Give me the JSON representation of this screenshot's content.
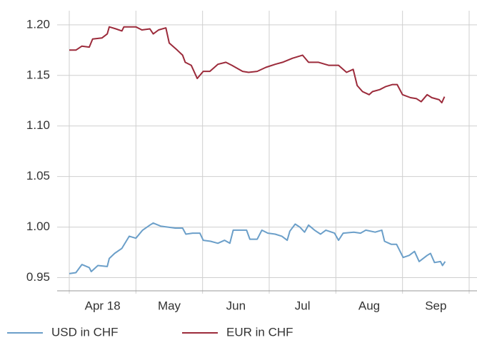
{
  "chart_data": {
    "type": "line",
    "xtick_labels": [
      "Apr 18",
      "May",
      "Jun",
      "Jul",
      "Aug",
      "Sep"
    ],
    "xlim": [
      0,
      6
    ],
    "xticks": [
      0,
      1,
      2,
      3,
      4,
      5,
      6
    ],
    "ylim": [
      0.937,
      1.214
    ],
    "yticks": [
      {
        "value": 0.95,
        "label": "0.95"
      },
      {
        "value": 1.0,
        "label": "1.00"
      },
      {
        "value": 1.05,
        "label": "1.05"
      },
      {
        "value": 1.1,
        "label": "1.10"
      },
      {
        "value": 1.15,
        "label": "1.15"
      },
      {
        "value": 1.2,
        "label": "1.20"
      }
    ],
    "grid": true,
    "legend": "bottom",
    "series": [
      {
        "name": "USD in CHF",
        "color": "#6b9fc9",
        "x": [
          0,
          0.1,
          0.19,
          0.3,
          0.33,
          0.43,
          0.57,
          0.6,
          0.68,
          0.79,
          0.9,
          1.0,
          1.1,
          1.21,
          1.26,
          1.37,
          1.48,
          1.59,
          1.7,
          1.75,
          1.85,
          1.96,
          2.01,
          2.12,
          2.23,
          2.33,
          2.41,
          2.46,
          2.66,
          2.71,
          2.82,
          2.89,
          2.98,
          3.09,
          3.19,
          3.27,
          3.31,
          3.39,
          3.46,
          3.53,
          3.59,
          3.68,
          3.77,
          3.85,
          3.98,
          4.04,
          4.11,
          4.27,
          4.37,
          4.45,
          4.59,
          4.69,
          4.73,
          4.83,
          4.91,
          5.01,
          5.1,
          5.18,
          5.25,
          5.37,
          5.42,
          5.48,
          5.57,
          5.6,
          5.64
        ],
        "values": [
          0.954,
          0.955,
          0.963,
          0.96,
          0.956,
          0.962,
          0.961,
          0.969,
          0.974,
          0.979,
          0.991,
          0.989,
          0.997,
          1.002,
          1.004,
          1.001,
          1.0,
          0.999,
          0.999,
          0.993,
          0.994,
          0.994,
          0.987,
          0.986,
          0.984,
          0.987,
          0.984,
          0.997,
          0.997,
          0.988,
          0.988,
          0.997,
          0.994,
          0.993,
          0.991,
          0.987,
          0.996,
          1.003,
          1.0,
          0.995,
          1.002,
          0.997,
          0.993,
          0.997,
          0.994,
          0.987,
          0.994,
          0.995,
          0.994,
          0.997,
          0.995,
          0.997,
          0.986,
          0.983,
          0.983,
          0.97,
          0.972,
          0.976,
          0.966,
          0.972,
          0.974,
          0.965,
          0.966,
          0.962,
          0.966
        ]
      },
      {
        "name": "EUR in CHF",
        "color": "#9c2b3b",
        "x": [
          0,
          0.1,
          0.19,
          0.3,
          0.35,
          0.49,
          0.57,
          0.6,
          0.7,
          0.79,
          0.82,
          1.0,
          1.09,
          1.21,
          1.26,
          1.34,
          1.45,
          1.5,
          1.62,
          1.7,
          1.74,
          1.83,
          1.92,
          2.01,
          2.11,
          2.23,
          2.35,
          2.44,
          2.6,
          2.69,
          2.82,
          2.95,
          3.09,
          3.2,
          3.35,
          3.5,
          3.59,
          3.74,
          3.89,
          4.04,
          4.16,
          4.26,
          4.32,
          4.4,
          4.5,
          4.55,
          4.66,
          4.75,
          4.85,
          4.92,
          5.0,
          5.12,
          5.21,
          5.28,
          5.37,
          5.44,
          5.55,
          5.59,
          5.63
        ],
        "values": [
          1.175,
          1.175,
          1.179,
          1.178,
          1.186,
          1.187,
          1.191,
          1.198,
          1.196,
          1.194,
          1.198,
          1.198,
          1.195,
          1.196,
          1.191,
          1.195,
          1.197,
          1.182,
          1.175,
          1.17,
          1.163,
          1.16,
          1.147,
          1.154,
          1.154,
          1.161,
          1.163,
          1.16,
          1.154,
          1.153,
          1.154,
          1.158,
          1.161,
          1.163,
          1.167,
          1.17,
          1.163,
          1.163,
          1.16,
          1.16,
          1.153,
          1.156,
          1.14,
          1.134,
          1.131,
          1.134,
          1.136,
          1.139,
          1.141,
          1.141,
          1.131,
          1.128,
          1.127,
          1.124,
          1.131,
          1.128,
          1.126,
          1.123,
          1.129
        ]
      }
    ]
  }
}
